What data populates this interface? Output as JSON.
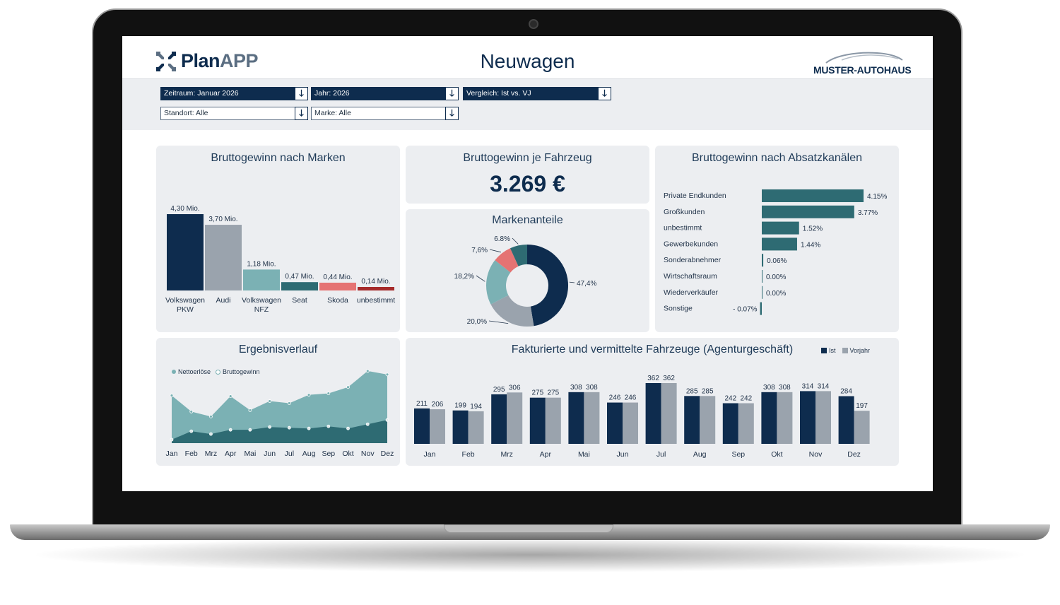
{
  "app": {
    "logo_plan": "Plan",
    "logo_app": "APP",
    "title": "Neuwagen",
    "brand": "MUSTER-AUTOHAUS"
  },
  "filters": {
    "zeitraum": "Zeitraum: Januar 2026",
    "jahr": "Jahr: 2026",
    "vergleich": "Vergleich: Ist vs. VJ",
    "standort": "Standort: Alle",
    "marke": "Marke: Alle"
  },
  "colors": {
    "navy": "#0e2c4e",
    "grey": "#9aa3ad",
    "teal": "#7bb1b4",
    "darkteal": "#2e6b73",
    "pink": "#e57373",
    "red": "#a52a2a",
    "panel": "#eceef1"
  },
  "icons": {
    "dropdown": "arrow-down-icon",
    "logo": "arrows-compress-icon",
    "car": "car-silhouette-icon"
  },
  "kpi": {
    "title": "Bruttogewinn je Fahrzeug",
    "value": "3.269 €"
  },
  "charts": [
    {
      "id": "marken",
      "type": "bar",
      "title": "Bruttogewinn nach Marken",
      "categories": [
        "Volkswagen PKW",
        "Audi",
        "Volkswagen NFZ",
        "Seat",
        "Skoda",
        "unbestimmt"
      ],
      "values": [
        4.3,
        3.7,
        1.18,
        0.47,
        0.44,
        0.14
      ],
      "labels": [
        "4,30 Mio.",
        "3,70 Mio.",
        "1,18 Mio.",
        "0,47 Mio.",
        "0,44 Mio.",
        "0,14 Mio."
      ],
      "colors": [
        "#0e2c4e",
        "#9aa3ad",
        "#7bb1b4",
        "#2e6b73",
        "#e57373",
        "#a52a2a"
      ],
      "unit": "Mio."
    },
    {
      "id": "markenanteile",
      "type": "pie",
      "title": "Markenanteile",
      "values": [
        47.4,
        20.0,
        18.2,
        7.6,
        6.8
      ],
      "labels": [
        "47,4%",
        "20,0%",
        "18,2%",
        "7,6%",
        "6.8%"
      ],
      "colors": [
        "#0e2c4e",
        "#9aa3ad",
        "#7bb1b4",
        "#e57373",
        "#2e6b73"
      ]
    },
    {
      "id": "absatzkanaele",
      "type": "bar",
      "orientation": "horizontal",
      "title": "Bruttogewinn nach Absatzkanälen",
      "categories": [
        "Private Endkunden",
        "Großkunden",
        "unbestimmt",
        "Gewerbekunden",
        "Sonderabnehmer",
        "Wirtschaftsraum",
        "Wiederverkäufer",
        "Sonstige"
      ],
      "values": [
        4.15,
        3.77,
        1.52,
        1.44,
        0.06,
        0.0,
        0.0,
        -0.07
      ],
      "labels": [
        "4.15%",
        "3.77%",
        "1.52%",
        "1.44%",
        "0.06%",
        "0.00%",
        "0.00%",
        "- 0.07%"
      ]
    },
    {
      "id": "ergebnisverlauf",
      "type": "area",
      "title": "Ergebnisverlauf",
      "categories": [
        "Jan",
        "Feb",
        "Mrz",
        "Apr",
        "Mai",
        "Jun",
        "Jul",
        "Aug",
        "Sep",
        "Okt",
        "Nov",
        "Dez"
      ],
      "series": [
        {
          "name": "Nettoerlöse",
          "values": [
            68,
            45,
            38,
            67,
            47,
            60,
            57,
            69,
            71,
            80,
            103,
            98
          ]
        },
        {
          "name": "Bruttogewinn",
          "values": [
            5,
            17,
            13,
            19,
            19,
            23,
            22,
            21,
            24,
            21,
            27,
            33
          ]
        }
      ],
      "ylim": [
        0,
        110
      ],
      "grid": false,
      "legend": "top-left"
    },
    {
      "id": "fahrzeuge",
      "type": "bar",
      "title": "Fakturierte und vermittelte Fahrzeuge (Agenturgeschäft)",
      "categories": [
        "Jan",
        "Feb",
        "Mrz",
        "Apr",
        "Mai",
        "Jun",
        "Jul",
        "Aug",
        "Sep",
        "Okt",
        "Nov",
        "Dez"
      ],
      "series": [
        {
          "name": "Ist",
          "values": [
            211,
            199,
            295,
            275,
            308,
            246,
            362,
            285,
            242,
            308,
            314,
            284
          ]
        },
        {
          "name": "Vorjahr",
          "values": [
            206,
            194,
            306,
            275,
            308,
            246,
            362,
            285,
            242,
            308,
            314,
            197
          ]
        }
      ],
      "legend": "top-right"
    }
  ]
}
